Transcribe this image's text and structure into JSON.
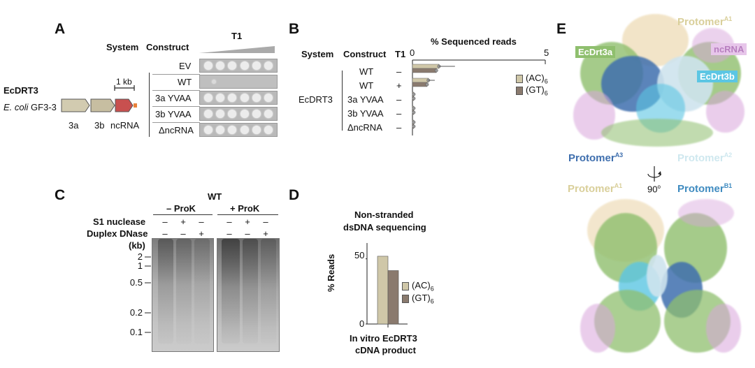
{
  "panelA": {
    "label": "A",
    "system_header": "System",
    "construct_header": "Construct",
    "t1_header": "T1",
    "locus_title": "EcDRT3",
    "organism_italic": "E. coli",
    "organism_rest": "GF3-3",
    "scale": "1 kb",
    "genes": [
      "3a",
      "3b",
      "ncRNA"
    ],
    "constructs": [
      "EV",
      "WT",
      "3a YVAA",
      "3b YVAA",
      "ΔncRNA"
    ]
  },
  "panelB": {
    "label": "B",
    "axis_title": "% Sequenced reads",
    "axis_ticks": [
      "0",
      "5"
    ],
    "system_header": "System",
    "construct_header": "Construct",
    "t1_header": "T1",
    "system": "EcDRT3",
    "rows": [
      {
        "construct": "WT",
        "t1": "–"
      },
      {
        "construct": "WT",
        "t1": "+"
      },
      {
        "construct": "3a YVAA",
        "t1": "–"
      },
      {
        "construct": "3b YVAA",
        "t1": "–"
      },
      {
        "construct": "ΔncRNA",
        "t1": "–"
      }
    ],
    "legend": [
      "(AC)",
      "(GT)"
    ],
    "legend_sub": "6",
    "colors": {
      "ac": "#cfc7a8",
      "gt": "#8a7a6e"
    }
  },
  "panelC": {
    "label": "C",
    "strain": "WT",
    "group_left": "– ProK",
    "group_right": "+ ProK",
    "row1_label": "S1 nuclease",
    "row2_label": "Duplex DNase",
    "unit": "(kb)",
    "row1_signs": [
      "–",
      "+",
      "–",
      "–",
      "+",
      "–"
    ],
    "row2_signs": [
      "–",
      "–",
      "+",
      "–",
      "–",
      "+"
    ],
    "markers": [
      "2",
      "1",
      "0.5",
      "0.2",
      "0.1"
    ]
  },
  "panelD": {
    "label": "D",
    "title_line1": "Non-stranded",
    "title_line2": "dsDNA sequencing",
    "ylabel": "% Reads",
    "yticks": [
      "50",
      "0"
    ],
    "legend": [
      "(AC)",
      "(GT)"
    ],
    "legend_sub": "6",
    "xlabel_line1": "In vitro EcDRT3",
    "xlabel_line2": "cDNA product"
  },
  "panelE": {
    "label": "E",
    "rotation": "90",
    "rotation_unit": "o",
    "labels": {
      "protomer": "Protomer",
      "a1": "A1",
      "a2": "A2",
      "a3": "A3",
      "b1": "B1",
      "ecdrt3a": "EcDrt3a",
      "ecdrt3b": "EcDrt3b",
      "ncrna": "ncRNA"
    },
    "colors": {
      "green": "#8fbf6e",
      "blue": "#3f6fae",
      "cyan": "#5cc6e3",
      "pink": "#d9a6dc",
      "tan": "#e8cf9c"
    }
  },
  "chart_data": [
    {
      "type": "bar",
      "title": "% Sequenced reads",
      "categories": [
        "WT –",
        "WT +",
        "3a YVAA –",
        "3b YVAA –",
        "ΔncRNA –"
      ],
      "series": [
        {
          "name": "(AC)6",
          "values": [
            1.0,
            0.6,
            0.05,
            0.05,
            0.05
          ]
        },
        {
          "name": "(GT)6",
          "values": [
            0.9,
            0.55,
            0.05,
            0.05,
            0.05
          ]
        }
      ],
      "orientation": "horizontal",
      "xlim": [
        0,
        5
      ]
    },
    {
      "type": "bar",
      "title": "Non-stranded dsDNA sequencing",
      "categories": [
        "In vitro EcDRT3 cDNA product"
      ],
      "series": [
        {
          "name": "(AC)6",
          "values": [
            52
          ]
        },
        {
          "name": "(GT)6",
          "values": [
            41
          ]
        }
      ],
      "ylabel": "% Reads",
      "ylim": [
        0,
        60
      ]
    }
  ]
}
